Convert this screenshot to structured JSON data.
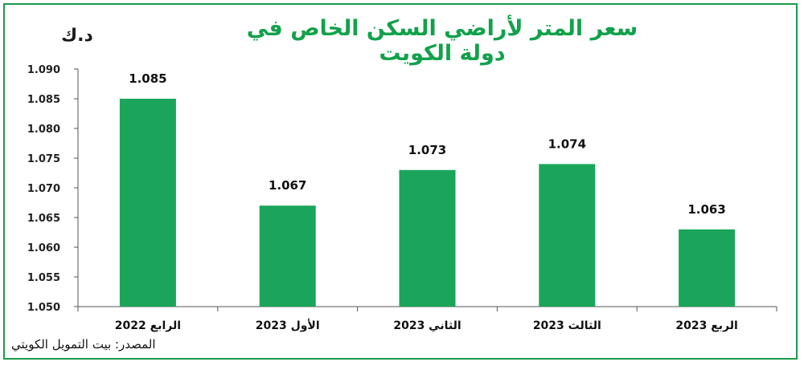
{
  "chart_data": {
    "type": "bar",
    "title": "سعر المتر لأراضي السكن الخاص في دولة الكويت",
    "unit_label": "د.ك",
    "source": "المصدر: بيت التمويل الكويتي",
    "categories": [
      "الرابع 2022",
      "الأول 2023",
      "الثاني 2023",
      "الثالث 2023",
      "الربع 2023"
    ],
    "values": [
      1.085,
      1.067,
      1.073,
      1.074,
      1.063
    ],
    "value_labels": [
      "1.085",
      "1.067",
      "1.073",
      "1.074",
      "1.063"
    ],
    "ylim": [
      1.05,
      1.09
    ],
    "y_ticks": [
      "1.050",
      "1.055",
      "1.060",
      "1.065",
      "1.070",
      "1.075",
      "1.080",
      "1.085",
      "1.090"
    ],
    "bar_color": "#1aa55a",
    "title_color": "#12a14b",
    "grid": false
  }
}
